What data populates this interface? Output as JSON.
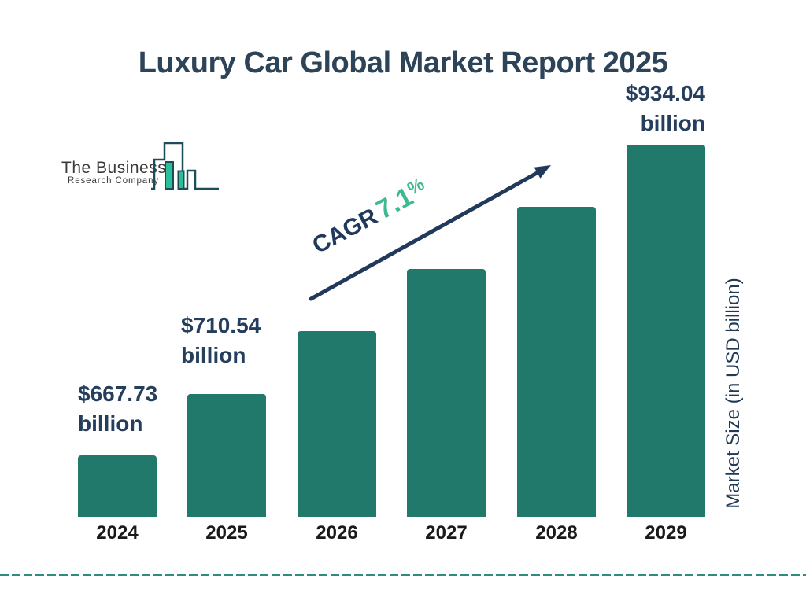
{
  "branding": {
    "name_line1": "The Business",
    "name_line2": "Research Company"
  },
  "chart_data": {
    "type": "bar",
    "title": "Luxury Car Global Market Report 2025",
    "categories": [
      "2024",
      "2025",
      "2026",
      "2027",
      "2028",
      "2029"
    ],
    "values": [
      667.73,
      710.54,
      760.99,
      815.02,
      872.89,
      934.04
    ],
    "labeled_years": [
      "2024",
      "2025",
      "2029"
    ],
    "value_labels": [
      {
        "year": "2024",
        "amount": "$667.73",
        "unit": "billion"
      },
      {
        "year": "2025",
        "amount": "$710.54",
        "unit": "billion"
      },
      {
        "year": "2029",
        "amount": "$934.04",
        "unit": "billion"
      }
    ],
    "cagr": {
      "label": "CAGR",
      "value": "7.1",
      "suffix": "%"
    },
    "xlabel": "",
    "ylabel": "Market Size (in USD billion)",
    "legend": false,
    "grid": false,
    "colors": {
      "bar": "#21796B",
      "navy": "#243E5C",
      "green": "#3CBB90",
      "divider": "#2E8C80",
      "logo_outline": "#1C4D5C",
      "logo_green": "#2CBE97",
      "year_text": "#1a1a1a"
    }
  }
}
